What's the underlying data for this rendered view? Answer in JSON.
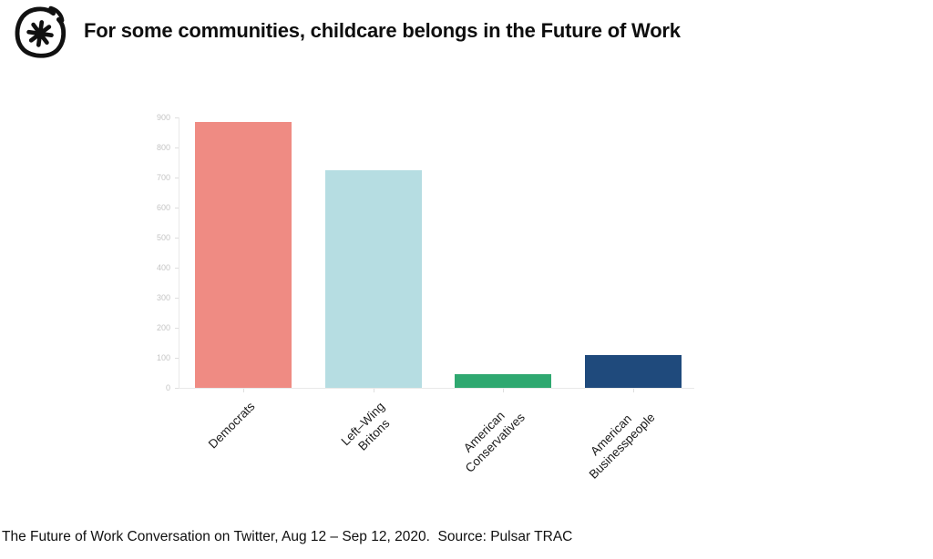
{
  "header": {
    "title": "For some communities, childcare belongs in the Future of Work",
    "logo_icon": "pulsar-asterisk-logo"
  },
  "footer": {
    "caption": "The Future of Work Conversation on Twitter, Aug 12 – Sep 12, 2020.  Source: Pulsar TRAC"
  },
  "colors": {
    "background": "#ffffff",
    "title_text": "#0e0e0e",
    "axis_line": "#e9e9e9",
    "ytick_label": "#c5c5c5",
    "category_label": "#1b1b1b",
    "bar_democrats": "#EF8B83",
    "bar_left_wing_britons": "#B6DDE2",
    "bar_american_conservatives": "#2FA870",
    "bar_american_businesspeople": "#1F4A7C"
  },
  "chart_data": {
    "type": "bar",
    "title": "For some communities, childcare belongs in the Future of Work",
    "categories": [
      "Democrats",
      "Left–Wing Britons",
      "American Conservatives",
      "American Businesspeople"
    ],
    "category_lines": [
      [
        "Democrats"
      ],
      [
        "Left–Wing",
        "Britons"
      ],
      [
        "American",
        "Conservatives"
      ],
      [
        "American",
        "Businesspeople"
      ]
    ],
    "values": [
      885,
      725,
      45,
      110
    ],
    "bar_colors": [
      "#EF8B83",
      "#B6DDE2",
      "#2FA870",
      "#1F4A7C"
    ],
    "xlabel": "",
    "ylabel": "",
    "ylim": [
      0,
      900
    ],
    "yticks": [
      0,
      100,
      200,
      300,
      400,
      500,
      600,
      700,
      800,
      900
    ],
    "grid": false,
    "legend_position": "none",
    "x_tick_rotation_deg": 45
  }
}
